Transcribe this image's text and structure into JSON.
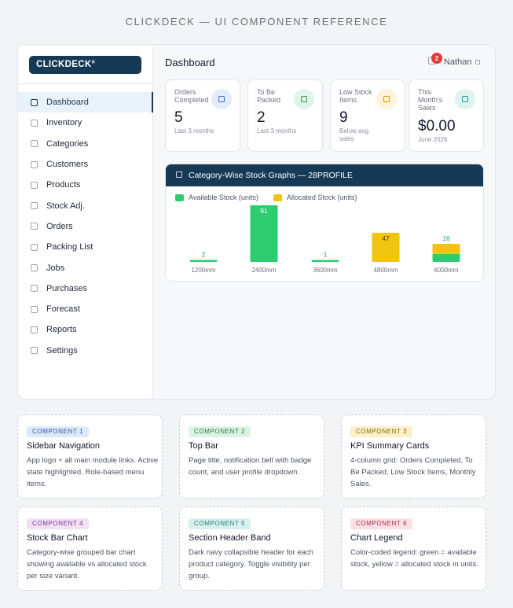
{
  "page": {
    "title": "CLICKDECK — UI COMPONENT REFERENCE"
  },
  "sidebar": {
    "logo": "CLICKDECK°",
    "items": [
      {
        "label": "Dashboard",
        "active": true,
        "name": "dashboard"
      },
      {
        "label": "Inventory",
        "name": "inventory"
      },
      {
        "label": "Categories",
        "name": "categories"
      },
      {
        "label": "Customers",
        "name": "customers"
      },
      {
        "label": "Products",
        "name": "products"
      },
      {
        "label": "Stock Adj.",
        "name": "stock-adj"
      },
      {
        "label": "Orders",
        "name": "orders"
      },
      {
        "label": "Packing List",
        "name": "packing-list"
      },
      {
        "label": "Jobs",
        "name": "jobs"
      },
      {
        "label": "Purchases",
        "name": "purchases"
      },
      {
        "label": "Forecast",
        "name": "forecast"
      },
      {
        "label": "Reports",
        "name": "reports"
      },
      {
        "label": "Settings",
        "name": "settings"
      }
    ]
  },
  "topbar": {
    "title": "Dashboard",
    "notification_count": "2",
    "user_name": "Nathan",
    "bell_icon": "bell-icon",
    "user_caret_icon": "chevron-down-icon"
  },
  "kpis": [
    {
      "label": "Orders Completed",
      "value": "5",
      "sub": "Last 3 months",
      "icon": "check-icon",
      "icon_color": "#3b6fd4",
      "icon_bg": "#e4ecfb"
    },
    {
      "label": "To Be Packed",
      "value": "2",
      "sub": "Last 3 months",
      "icon": "box-icon",
      "icon_color": "#2e9b5a",
      "icon_bg": "#e2f4e9"
    },
    {
      "label": "Low Stock Items",
      "value": "9",
      "sub": "Below avg. sales",
      "icon": "alert-icon",
      "icon_color": "#d6a10a",
      "icon_bg": "#fdf3d6"
    },
    {
      "label": "This Month's Sales",
      "value": "$0.00",
      "sub": "June 2026",
      "icon": "dollar-icon",
      "icon_color": "#1f9b8f",
      "icon_bg": "#dff2f0"
    }
  ],
  "chart": {
    "header_title": "Category-Wise Stock Graphs — 28PROFILE",
    "header_icon": "collapse-icon"
  },
  "chart_data": {
    "type": "bar",
    "stacked": true,
    "categories": [
      "1200mm",
      "2400mm",
      "3600mm",
      "4800mm",
      "6000mm"
    ],
    "series": [
      {
        "name": "Available Stock (units)",
        "color": "#2ecc71",
        "values": [
          2,
          91,
          1,
          0,
          13
        ]
      },
      {
        "name": "Allocated Stock (units)",
        "color": "#f1c40f",
        "values": [
          0,
          0,
          0,
          47,
          16
        ]
      }
    ],
    "data_labels": true,
    "legend_position": "top-left"
  },
  "components": [
    {
      "badge": "COMPONENT 1",
      "title": "Sidebar Navigation",
      "desc": "App logo + all main module links. Active state highlighted. Role-based menu items.",
      "badge_bg": "#dde9fb",
      "badge_color": "#2b5aa6"
    },
    {
      "badge": "COMPONENT 2",
      "title": "Top Bar",
      "desc": "Page title, notification bell with badge count, and user profile dropdown.",
      "badge_bg": "#dcf2e3",
      "badge_color": "#247a45"
    },
    {
      "badge": "COMPONENT 3",
      "title": "KPI Summary Cards",
      "desc": "4-column grid: Orders Completed, To Be Packed, Low Stock Items, Monthly Sales.",
      "badge_bg": "#fbf0c9",
      "badge_color": "#8a6a06"
    },
    {
      "badge": "COMPONENT 4",
      "title": "Stock Bar Chart",
      "desc": "Category-wise grouped bar chart showing available vs allocated stock per size variant.",
      "badge_bg": "#f1e0f6",
      "badge_color": "#7b3a92"
    },
    {
      "badge": "COMPONENT 5",
      "title": "Section Header Band",
      "desc": "Dark navy collapsible header for each product category. Toggle visibility per group.",
      "badge_bg": "#d9f1ee",
      "badge_color": "#1f7a70"
    },
    {
      "badge": "COMPONENT 6",
      "title": "Chart Legend",
      "desc": "Color-coded legend: green = available stock, yellow = allocated stock in units.",
      "badge_bg": "#fae0e6",
      "badge_color": "#a3304a"
    }
  ]
}
